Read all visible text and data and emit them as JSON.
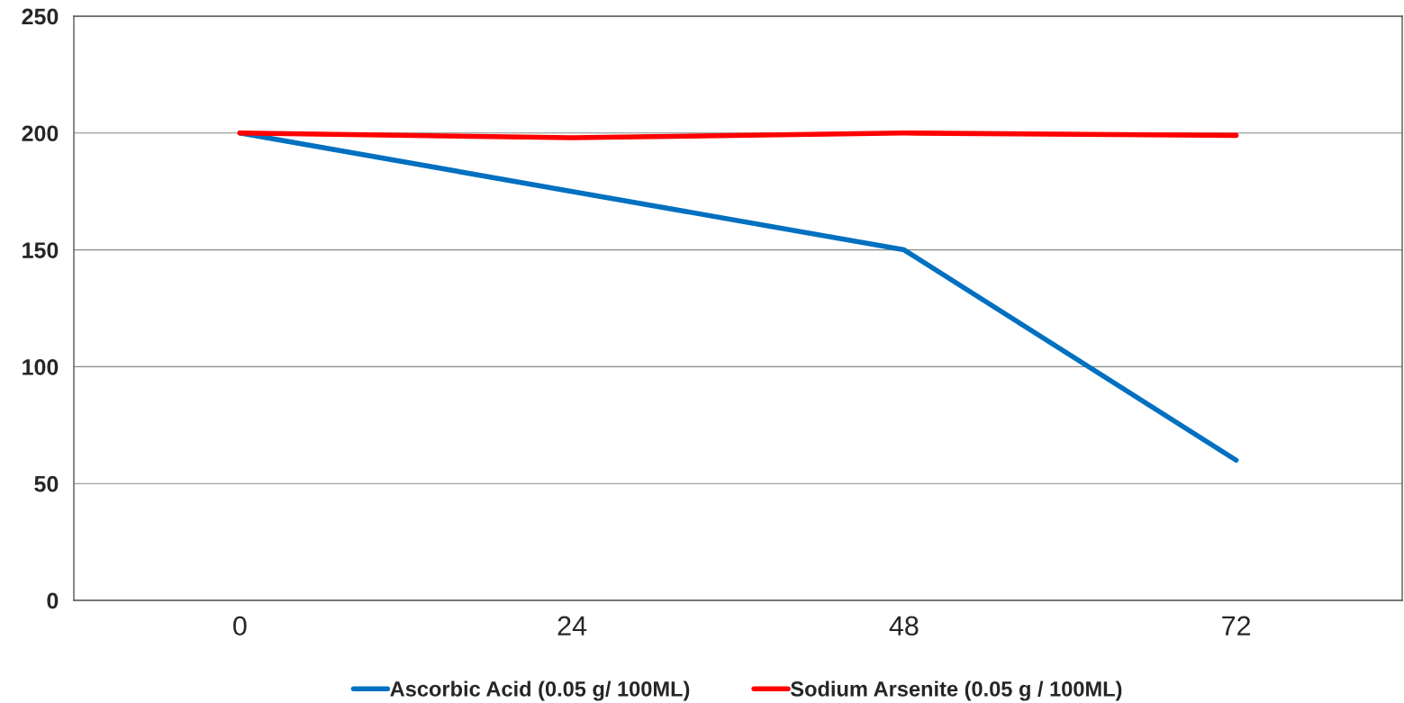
{
  "chart_data": {
    "type": "line",
    "categories": [
      "0",
      "24",
      "48",
      "72"
    ],
    "series": [
      {
        "name": "Ascorbic Acid (0.05 g/ 100ML)",
        "color": "#0070c0",
        "values": [
          200,
          175,
          150,
          60
        ]
      },
      {
        "name": "Sodium Arsenite (0.05 g / 100ML)",
        "color": "#ff0000",
        "values": [
          200,
          198,
          200,
          199
        ]
      }
    ],
    "ylim": [
      0,
      250
    ],
    "yticks": [
      0,
      50,
      100,
      150,
      200,
      250
    ],
    "grid": "y",
    "legend": "bottom",
    "marker": "none",
    "line_style": "solid"
  }
}
